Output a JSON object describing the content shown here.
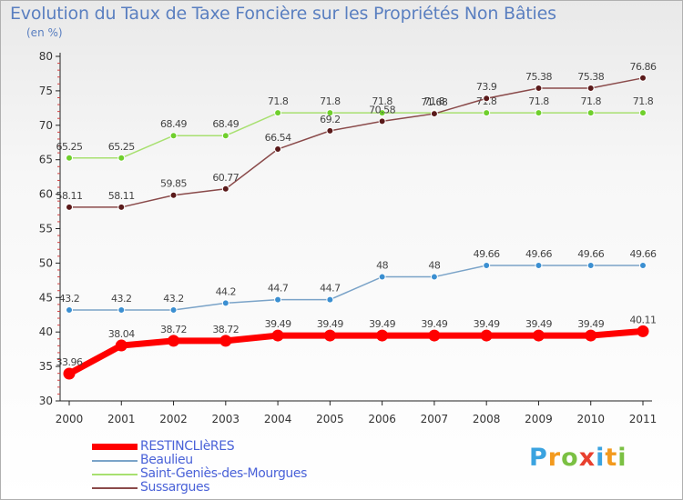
{
  "header": {
    "title": "Evolution du Taux de Taxe Foncière sur les Propriétés Non Bâties",
    "unit": "(en %)"
  },
  "brand": {
    "name": "Proxiti",
    "letters": [
      "P",
      "r",
      "o",
      "x",
      "i",
      "t",
      "i"
    ],
    "letter_colors": [
      "#3aa3e0",
      "#f39a1e",
      "#7bc043",
      "#e8402f",
      "#3aa3e0",
      "#f39a1e",
      "#7bc043"
    ]
  },
  "chart_data": {
    "type": "line",
    "title": "Evolution du Taux de Taxe Foncière sur les Propriétés Non Bâties",
    "ylabel": "(en %)",
    "xlabel": "",
    "ylim": [
      30,
      80
    ],
    "yticks": [
      30,
      35,
      40,
      45,
      50,
      55,
      60,
      65,
      70,
      75,
      80
    ],
    "grid": false,
    "legend_position": "bottom-left",
    "categories": [
      "2000",
      "2001",
      "2002",
      "2003",
      "2004",
      "2005",
      "2006",
      "2007",
      "2008",
      "2009",
      "2010",
      "2011"
    ],
    "series": [
      {
        "name": "RESTINCLIèRES",
        "color": "#ff0000",
        "point_color": "#ff0000",
        "emphasis": true,
        "values": [
          33.96,
          38.04,
          38.72,
          38.72,
          39.49,
          39.49,
          39.49,
          39.49,
          39.49,
          39.49,
          39.49,
          40.11
        ],
        "labels": [
          "33.96",
          "38.04",
          "38.72",
          "38.72",
          "39.49",
          "39.49",
          "39.49",
          "39.49",
          "39.49",
          "39.49",
          "39.49",
          "40.11"
        ]
      },
      {
        "name": "Beaulieu",
        "color": "#7aa3c8",
        "point_color": "#3b8fd1",
        "emphasis": false,
        "values": [
          43.2,
          43.2,
          43.2,
          44.2,
          44.7,
          44.7,
          48,
          48,
          49.66,
          49.66,
          49.66,
          49.66
        ],
        "labels": [
          "43.2",
          "43.2",
          "43.2",
          "44.2",
          "44.7",
          "44.7",
          "48",
          "48",
          "49.66",
          "49.66",
          "49.66",
          "49.66"
        ]
      },
      {
        "name": "Saint-Geniès-des-Mourgues",
        "color": "#a8e070",
        "point_color": "#6fcf2c",
        "emphasis": false,
        "values": [
          65.25,
          65.25,
          68.49,
          68.49,
          71.8,
          71.8,
          71.8,
          71.8,
          71.8,
          71.8,
          71.8,
          71.8
        ],
        "labels": [
          "65.25",
          "65.25",
          "68.49",
          "68.49",
          "71.8",
          "71.8",
          "71.8",
          "71.8",
          "71.8",
          "71.8",
          "71.8",
          "71.8"
        ]
      },
      {
        "name": "Sussargues",
        "color": "#8a4a4a",
        "point_color": "#5a1a1a",
        "emphasis": false,
        "values": [
          58.11,
          58.11,
          59.85,
          60.77,
          66.54,
          69.2,
          70.58,
          71.68,
          73.9,
          75.38,
          75.38,
          76.86
        ],
        "labels": [
          "58.11",
          "58.11",
          "59.85",
          "60.77",
          "66.54",
          "69.2",
          "70.58",
          "71.68",
          "73.9",
          "75.38",
          "75.38",
          "76.86"
        ]
      }
    ]
  }
}
